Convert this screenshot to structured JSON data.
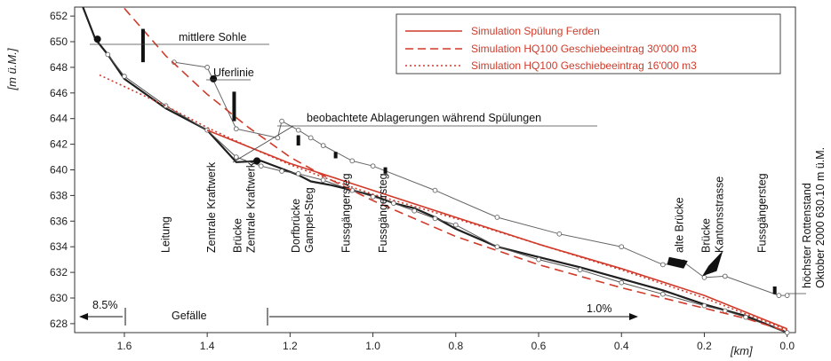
{
  "chart_data": {
    "type": "line",
    "title": "",
    "xlabel": "[km]",
    "ylabel": "[m ü.M.]",
    "xlim": [
      1.72,
      -0.02
    ],
    "ylim": [
      627.3,
      652.7
    ],
    "x_reversed": true,
    "x_ticks": [
      "1.6",
      "1.4",
      "1.2",
      "1.0",
      "0.8",
      "0.6",
      "0.4",
      "0.2",
      "0.0"
    ],
    "y_ticks": [
      "628",
      "630",
      "632",
      "634",
      "636",
      "638",
      "640",
      "642",
      "644",
      "646",
      "648",
      "650",
      "652"
    ],
    "grid": false,
    "legend_position": "top-right",
    "colors": {
      "red": "#d03a2a",
      "black": "#1f1f1f",
      "gray": "#555555"
    },
    "legend": [
      {
        "label": "Simulation Spülung Ferden",
        "style": "solid"
      },
      {
        "label": "Simulation HQ100 Geschiebeeintrag 30'000 m3",
        "style": "dashed"
      },
      {
        "label": "Simulation HQ100 Geschiebeeintrag 16'000 m3",
        "style": "dotted"
      }
    ],
    "series": [
      {
        "style": "black-bold",
        "points": [
          [
            1.7,
            653.5
          ],
          [
            1.67,
            650.2
          ],
          [
            1.64,
            649.0
          ],
          [
            1.6,
            647.1
          ],
          [
            1.5,
            644.8
          ],
          [
            1.4,
            643.1
          ],
          [
            1.33,
            640.6
          ],
          [
            1.27,
            640.7
          ],
          [
            1.22,
            640.1
          ],
          [
            1.18,
            639.6
          ],
          [
            1.15,
            639.1
          ],
          [
            1.1,
            638.8
          ],
          [
            1.0,
            638.0
          ],
          [
            0.95,
            637.4
          ],
          [
            0.9,
            637.0
          ],
          [
            0.85,
            636.3
          ],
          [
            0.8,
            635.4
          ],
          [
            0.7,
            634.0
          ],
          [
            0.6,
            633.2
          ],
          [
            0.5,
            632.4
          ],
          [
            0.4,
            631.5
          ],
          [
            0.3,
            630.6
          ],
          [
            0.2,
            629.5
          ],
          [
            0.1,
            628.6
          ],
          [
            0.0,
            627.3
          ]
        ]
      },
      {
        "style": "gray-thin",
        "points": [
          [
            1.64,
            649.0
          ],
          [
            1.6,
            647.3
          ],
          [
            1.5,
            645.0
          ],
          [
            1.4,
            643.1
          ],
          [
            1.33,
            641.0
          ],
          [
            1.27,
            640.3
          ],
          [
            1.22,
            639.9
          ],
          [
            1.18,
            639.7
          ],
          [
            1.12,
            639.2
          ],
          [
            1.05,
            638.4
          ],
          [
            1.0,
            637.9
          ],
          [
            0.95,
            637.4
          ],
          [
            0.9,
            636.8
          ],
          [
            0.85,
            636.2
          ],
          [
            0.8,
            635.7
          ],
          [
            0.7,
            634.0
          ],
          [
            0.6,
            633.0
          ],
          [
            0.5,
            632.2
          ],
          [
            0.4,
            631.2
          ],
          [
            0.3,
            630.3
          ],
          [
            0.2,
            629.4
          ],
          [
            0.15,
            629.0
          ],
          [
            0.1,
            628.5
          ],
          [
            0.0,
            627.3
          ]
        ]
      },
      {
        "style": "gray-circles",
        "points": [
          [
            1.48,
            648.4
          ],
          [
            1.4,
            648.0
          ],
          [
            1.33,
            643.2
          ],
          [
            1.23,
            642.5
          ],
          [
            1.22,
            643.8
          ],
          [
            1.18,
            643.1
          ],
          [
            1.15,
            642.5
          ],
          [
            1.12,
            641.9
          ],
          [
            1.05,
            640.7
          ],
          [
            1.0,
            640.3
          ],
          [
            0.85,
            638.4
          ],
          [
            0.7,
            636.3
          ],
          [
            0.55,
            635.0
          ],
          [
            0.4,
            634.0
          ],
          [
            0.3,
            632.6
          ],
          [
            0.25,
            632.8
          ],
          [
            0.2,
            631.6
          ],
          [
            0.15,
            631.7
          ],
          [
            0.02,
            630.2
          ],
          [
            0.0,
            630.2
          ]
        ]
      },
      {
        "style": "red-solid",
        "points": [
          [
            1.4,
            643.1
          ],
          [
            1.2,
            640.5
          ],
          [
            1.0,
            638.4
          ],
          [
            0.8,
            636.3
          ],
          [
            0.6,
            634.2
          ],
          [
            0.4,
            632.3
          ],
          [
            0.2,
            630.2
          ],
          [
            0.0,
            627.6
          ]
        ]
      },
      {
        "style": "red-dashed",
        "points": [
          [
            1.6,
            652.6
          ],
          [
            1.5,
            648.9
          ],
          [
            1.4,
            645.9
          ],
          [
            1.3,
            643.3
          ],
          [
            1.2,
            641.0
          ],
          [
            1.1,
            639.2
          ],
          [
            1.0,
            637.6
          ],
          [
            0.9,
            636.2
          ],
          [
            0.8,
            634.8
          ],
          [
            0.6,
            632.6
          ],
          [
            0.4,
            630.8
          ],
          [
            0.2,
            629.2
          ],
          [
            0.1,
            628.4
          ],
          [
            0.0,
            627.4
          ]
        ]
      },
      {
        "style": "red-dotted",
        "points": [
          [
            1.66,
            647.4
          ],
          [
            1.5,
            645.0
          ],
          [
            1.4,
            643.3
          ],
          [
            1.3,
            641.8
          ],
          [
            1.2,
            640.4
          ],
          [
            1.1,
            639.2
          ],
          [
            1.0,
            638.1
          ],
          [
            0.8,
            636.2
          ],
          [
            0.6,
            634.2
          ],
          [
            0.4,
            632.2
          ],
          [
            0.2,
            630.0
          ],
          [
            0.0,
            627.5
          ]
        ]
      }
    ],
    "markers": [
      {
        "label": "filled-dot",
        "point": [
          1.665,
          650.2
        ]
      },
      {
        "label": "filled-dot",
        "point": [
          1.385,
          647.1
        ]
      },
      {
        "label": "filled-dot",
        "point": [
          1.28,
          640.7
        ]
      }
    ],
    "deposits": [
      {
        "x": 1.555,
        "y_from": 648.4,
        "y_to": 651.0
      },
      {
        "x": 1.335,
        "y_from": 643.8,
        "y_to": 646.1
      },
      {
        "x": 1.18,
        "y_from": 641.9,
        "y_to": 642.7
      },
      {
        "x": 1.09,
        "y_from": 640.9,
        "y_to": 641.4
      },
      {
        "x": 0.97,
        "y_from": 639.7,
        "y_to": 640.2
      },
      {
        "x": 0.03,
        "y_from": 630.3,
        "y_to": 630.9
      }
    ],
    "annotations": {
      "mittlere_sohle": "mittlere Sohle",
      "uferlinie": "Uferlinie",
      "ablagerungen": "beobachtete Ablagerungen während Spülungen",
      "hoechster_stand": [
        "höchster Rottenstand",
        "Oktober 2000 630.10 m ü.M."
      ],
      "gefaelle": "Gefälle",
      "slope_left": "8.5%",
      "slope_right": "1.0%",
      "locations": [
        {
          "lines": [
            "Leitung"
          ],
          "x": 1.5
        },
        {
          "lines": [
            "Zentrale Kraftwerk"
          ],
          "x": 1.39
        },
        {
          "lines": [
            "Brücke",
            "Zentrale Kraftwerk"
          ],
          "x": 1.31
        },
        {
          "lines": [
            "Dorfbrücke",
            "Gampel-Steg"
          ],
          "x": 1.17
        },
        {
          "lines": [
            "Fussgängersteg"
          ],
          "x": 1.065
        },
        {
          "lines": [
            "Fussgängersteg"
          ],
          "x": 0.975
        },
        {
          "lines": [
            "alte Brücke"
          ],
          "x": 0.26
        },
        {
          "lines": [
            "Brücke",
            "Kantonsstrasse"
          ],
          "x": 0.18
        },
        {
          "lines": [
            "Fussgängersteg"
          ],
          "x": 0.06
        }
      ]
    }
  }
}
